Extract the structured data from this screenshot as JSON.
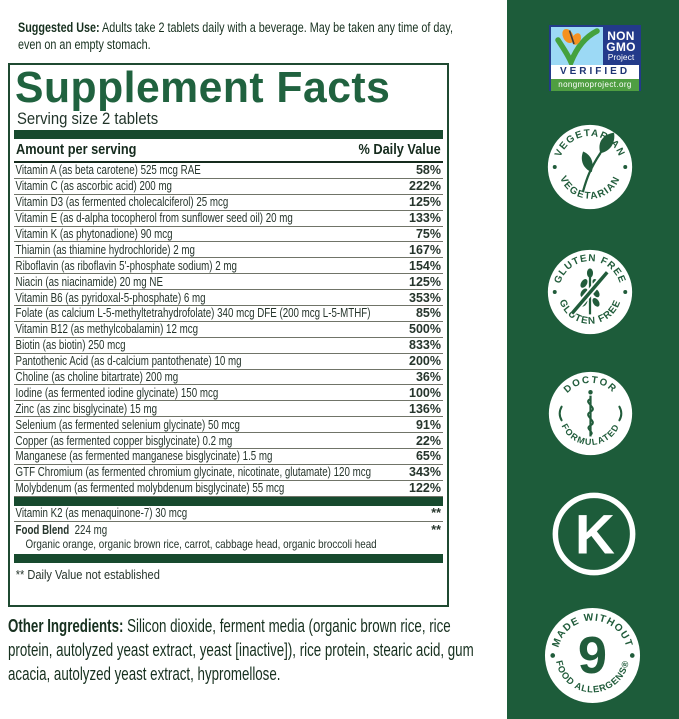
{
  "suggested_use": {
    "label": "Suggested Use:",
    "text": "Adults take 2 tablets daily with a beverage. May be taken any time of day, even on an empty stomach."
  },
  "panel": {
    "title": "Supplement Facts",
    "serving_size": "Serving size 2 tablets",
    "columns": {
      "amount": "Amount per serving",
      "dv": "% Daily Value"
    },
    "rows": [
      {
        "name": "Vitamin A (as beta carotene) 525 mcg RAE",
        "dv": "58%"
      },
      {
        "name": "Vitamin C (as ascorbic acid) 200 mg",
        "dv": "222%"
      },
      {
        "name": "Vitamin D3 (as fermented cholecalciferol) 25 mcg",
        "dv": "125%"
      },
      {
        "name": "Vitamin E (as d-alpha tocopherol from sunflower seed oil) 20 mg",
        "dv": "133%"
      },
      {
        "name": "Vitamin K (as phytonadione) 90 mcg",
        "dv": "75%"
      },
      {
        "name": "Thiamin (as thiamine hydrochloride) 2 mg",
        "dv": "167%"
      },
      {
        "name": "Riboflavin (as riboflavin 5'-phosphate sodium) 2 mg",
        "dv": "154%"
      },
      {
        "name": "Niacin (as niacinamide) 20 mg NE",
        "dv": "125%"
      },
      {
        "name": "Vitamin B6 (as pyridoxal-5-phosphate) 6 mg",
        "dv": "353%"
      },
      {
        "name": "Folate (as calcium L-5-methyltetrahydrofolate) 340 mcg DFE (200 mcg L-5-MTHF)",
        "dv": "85%"
      },
      {
        "name": "Vitamin B12 (as methylcobalamin) 12 mcg",
        "dv": "500%"
      },
      {
        "name": "Biotin (as biotin) 250 mcg",
        "dv": "833%"
      },
      {
        "name": "Pantothenic Acid (as d-calcium pantothenate) 10 mg",
        "dv": "200%"
      },
      {
        "name": "Choline (as choline bitartrate) 200 mg",
        "dv": "36%"
      },
      {
        "name": "Iodine (as fermented iodine glycinate) 150 mcg",
        "dv": "100%"
      },
      {
        "name": "Zinc (as zinc bisglycinate) 15 mg",
        "dv": "136%"
      },
      {
        "name": "Selenium (as fermented selenium glycinate) 50 mcg",
        "dv": "91%"
      },
      {
        "name": "Copper (as fermented copper bisglycinate) 0.2 mg",
        "dv": "22%"
      },
      {
        "name": "Manganese (as fermented manganese bisglycinate) 1.5 mg",
        "dv": "65%"
      },
      {
        "name": "GTF Chromium (as fermented chromium glycinate, nicotinate, glutamate) 120 mcg",
        "dv": "343%"
      },
      {
        "name": "Molybdenum (as fermented molybdenum bisglycinate) 55 mcg",
        "dv": "122%"
      }
    ],
    "k2_row": {
      "name": "Vitamin K2 (as menaquinone-7) 30 mcg",
      "dv": "**"
    },
    "food_blend": {
      "label": "Food Blend",
      "amount": "224 mg",
      "dv": "**",
      "ingredients": "Organic orange, organic brown rice, carrot, cabbage head, organic broccoli head"
    },
    "footnote": "** Daily Value not established"
  },
  "other_ingredients": {
    "label": "Other Ingredients:",
    "text": "Silicon dioxide, ferment media (organic brown rice, rice protein, autolyzed yeast extract, yeast [inactive]), rice protein, stearic acid, gum acacia, autolyzed yeast extract, hypromellose."
  },
  "badges": {
    "non_gmo": {
      "line1": "NON",
      "line2": "GMO",
      "line3": "Project",
      "verified": "VERIFIED",
      "url": "nongmoproject.org"
    },
    "vegetarian": {
      "top": "VEGETARIAN",
      "bottom": "VEGETARIAN"
    },
    "gluten_free": {
      "top": "GLUTEN FREE",
      "bottom": "GLUTEN FREE"
    },
    "doctor": {
      "top": "DOCTOR",
      "bottom": "FORMULATED"
    },
    "kosher": {
      "letter": "K"
    },
    "allergens": {
      "top": "MADE WITHOUT",
      "number": "9",
      "bottom": "FOOD ALLERGENS®"
    }
  },
  "colors": {
    "sidebar_green": "#1d5c3a",
    "title_green": "#20623f",
    "bar_green": "#174a2e",
    "nongmo_blue": "#233a8a",
    "nongmo_sky": "#9cd9f5",
    "nongmo_url_green": "#4f9e42",
    "butterfly_orange": "#f59120"
  }
}
